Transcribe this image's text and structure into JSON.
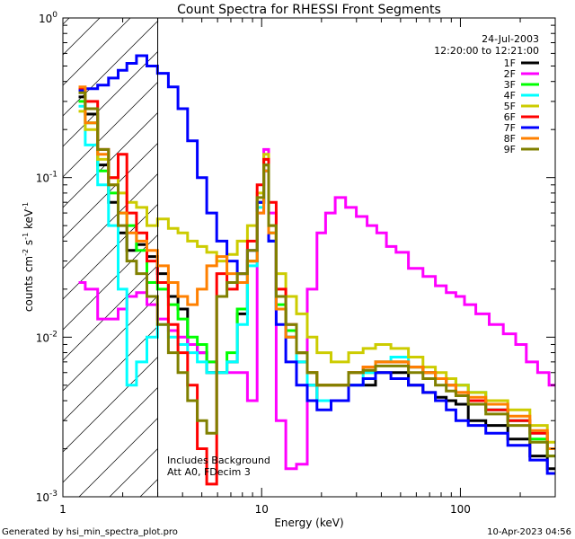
{
  "chart_data": {
    "type": "line",
    "title": "Count Spectra for RHESSI Front Segments",
    "xlabel": "Energy (keV)",
    "ylabel_parts": {
      "a": "counts cm",
      "b": "-2",
      "c": " s",
      "d": "-1",
      "e": " keV",
      "f": "-1"
    },
    "x_scale": "log",
    "y_scale": "log",
    "xlim": [
      1,
      300
    ],
    "ylim": [
      0.001,
      1
    ],
    "x_ticks": [
      {
        "value": 1,
        "label": "1"
      },
      {
        "value": 10,
        "label": "10"
      },
      {
        "value": 100,
        "label": "100"
      }
    ],
    "y_ticks": [
      {
        "value": 0.001,
        "base": "10",
        "exp": "-3"
      },
      {
        "value": 0.01,
        "base": "10",
        "exp": "-2"
      },
      {
        "value": 0.1,
        "base": "10",
        "exp": "-1"
      },
      {
        "value": 1,
        "base": "10",
        "exp": "0"
      }
    ],
    "legend_position": "top-right",
    "date": "24-Jul-2003",
    "time_range": "12:20:00 to 12:21:00",
    "annotation_line1": "Includes Background",
    "annotation_line2": "Att A0, FDecim 3",
    "hatched_region_max_kev": 3,
    "series": [
      {
        "name": "1F",
        "color": "#000000",
        "x": [
          1.2,
          1.4,
          1.6,
          1.8,
          2.0,
          2.2,
          2.5,
          2.8,
          3.2,
          3.6,
          4.0,
          4.5,
          5.0,
          5.6,
          6.3,
          7.1,
          8.0,
          9.0,
          10.0,
          10.5,
          11.2,
          12.5,
          14.0,
          16.0,
          18.0,
          20.0,
          25.0,
          30.0,
          35.0,
          40.0,
          50.0,
          60.0,
          70.0,
          80.0,
          90.0,
          100.0,
          120.0,
          150.0,
          200.0,
          250.0,
          300.0
        ],
        "y": [
          0.32,
          0.25,
          0.12,
          0.07,
          0.045,
          0.035,
          0.038,
          0.032,
          0.025,
          0.018,
          0.015,
          0.009,
          0.008,
          0.006,
          0.006,
          0.007,
          0.014,
          0.03,
          0.07,
          0.12,
          0.04,
          0.015,
          0.01,
          0.007,
          0.005,
          0.004,
          0.004,
          0.005,
          0.005,
          0.006,
          0.006,
          0.005,
          0.0045,
          0.0042,
          0.004,
          0.0038,
          0.003,
          0.0028,
          0.0023,
          0.0018,
          0.0015
        ]
      },
      {
        "name": "2F",
        "color": "#ff00ff",
        "x": [
          1.2,
          1.4,
          1.6,
          1.8,
          2.0,
          2.2,
          2.5,
          2.8,
          3.2,
          3.6,
          4.0,
          4.5,
          5.0,
          5.6,
          6.3,
          7.1,
          8.0,
          9.0,
          10.0,
          10.5,
          11.2,
          12.5,
          14.0,
          16.0,
          18.0,
          20.0,
          22.0,
          25.0,
          28.0,
          32.0,
          36.0,
          40.0,
          45.0,
          50.0,
          60.0,
          70.0,
          80.0,
          90.0,
          100.0,
          110.0,
          130.0,
          150.0,
          180.0,
          200.0,
          230.0,
          260.0,
          300.0
        ],
        "y": [
          0.022,
          0.02,
          0.013,
          0.013,
          0.015,
          0.018,
          0.019,
          0.016,
          0.013,
          0.011,
          0.01,
          0.009,
          0.008,
          0.007,
          0.006,
          0.006,
          0.006,
          0.004,
          0.06,
          0.15,
          0.06,
          0.003,
          0.0015,
          0.0016,
          0.02,
          0.045,
          0.06,
          0.075,
          0.065,
          0.057,
          0.05,
          0.045,
          0.037,
          0.034,
          0.027,
          0.024,
          0.021,
          0.019,
          0.018,
          0.016,
          0.014,
          0.012,
          0.0105,
          0.009,
          0.007,
          0.006,
          0.005
        ]
      },
      {
        "name": "3F",
        "color": "#00ff00",
        "x": [
          1.2,
          1.4,
          1.6,
          1.8,
          2.0,
          2.2,
          2.5,
          2.8,
          3.2,
          3.6,
          4.0,
          4.5,
          5.0,
          5.6,
          6.3,
          7.1,
          8.0,
          9.0,
          10.0,
          10.5,
          11.2,
          12.5,
          14.0,
          16.0,
          18.0,
          20.0,
          25.0,
          30.0,
          35.0,
          40.0,
          50.0,
          60.0,
          70.0,
          80.0,
          90.0,
          100.0,
          120.0,
          150.0,
          200.0,
          250.0,
          300.0
        ],
        "y": [
          0.3,
          0.22,
          0.11,
          0.08,
          0.06,
          0.05,
          0.035,
          0.022,
          0.02,
          0.016,
          0.013,
          0.01,
          0.009,
          0.007,
          0.006,
          0.008,
          0.015,
          0.03,
          0.07,
          0.13,
          0.045,
          0.016,
          0.011,
          0.008,
          0.006,
          0.005,
          0.005,
          0.006,
          0.006,
          0.007,
          0.007,
          0.0065,
          0.006,
          0.0055,
          0.0055,
          0.005,
          0.0045,
          0.0035,
          0.003,
          0.0023,
          0.0018
        ]
      },
      {
        "name": "4F",
        "color": "#00ffff",
        "x": [
          1.2,
          1.4,
          1.6,
          1.8,
          2.0,
          2.2,
          2.5,
          2.8,
          3.2,
          3.6,
          4.0,
          4.5,
          5.0,
          5.6,
          6.3,
          7.1,
          8.0,
          9.0,
          10.0,
          10.5,
          11.2,
          12.5,
          14.0,
          16.0,
          18.0,
          20.0,
          25.0,
          30.0,
          35.0,
          40.0,
          50.0,
          60.0,
          70.0,
          80.0,
          90.0,
          100.0,
          120.0,
          150.0,
          200.0,
          250.0,
          300.0
        ],
        "y": [
          0.28,
          0.16,
          0.09,
          0.05,
          0.02,
          0.005,
          0.007,
          0.01,
          0.012,
          0.01,
          0.009,
          0.008,
          0.007,
          0.006,
          0.006,
          0.007,
          0.012,
          0.028,
          0.065,
          0.11,
          0.04,
          0.015,
          0.01,
          0.007,
          0.005,
          0.004,
          0.004,
          0.005,
          0.006,
          0.007,
          0.0075,
          0.0065,
          0.006,
          0.0055,
          0.005,
          0.005,
          0.0045,
          0.0035,
          0.003,
          0.0025,
          0.002
        ]
      },
      {
        "name": "5F",
        "color": "#cccc00",
        "x": [
          1.2,
          1.4,
          1.6,
          1.8,
          2.0,
          2.2,
          2.5,
          2.8,
          3.2,
          3.6,
          4.0,
          4.5,
          5.0,
          5.6,
          6.3,
          7.1,
          8.0,
          9.0,
          10.0,
          10.5,
          11.2,
          12.5,
          14.0,
          16.0,
          18.0,
          20.0,
          25.0,
          30.0,
          35.0,
          40.0,
          50.0,
          60.0,
          70.0,
          80.0,
          90.0,
          100.0,
          120.0,
          150.0,
          200.0,
          250.0,
          300.0
        ],
        "y": [
          0.26,
          0.2,
          0.13,
          0.1,
          0.08,
          0.07,
          0.065,
          0.05,
          0.055,
          0.048,
          0.045,
          0.04,
          0.037,
          0.034,
          0.03,
          0.033,
          0.04,
          0.05,
          0.08,
          0.14,
          0.05,
          0.025,
          0.018,
          0.014,
          0.01,
          0.008,
          0.007,
          0.008,
          0.0085,
          0.009,
          0.0085,
          0.0075,
          0.0065,
          0.006,
          0.0055,
          0.005,
          0.0045,
          0.004,
          0.0035,
          0.0028,
          0.0022
        ]
      },
      {
        "name": "6F",
        "color": "#ff0000",
        "x": [
          1.2,
          1.4,
          1.6,
          1.8,
          2.0,
          2.2,
          2.5,
          2.8,
          3.2,
          3.6,
          4.0,
          4.5,
          5.0,
          5.6,
          6.3,
          7.1,
          8.0,
          9.0,
          10.0,
          10.5,
          11.2,
          12.5,
          14.0,
          16.0,
          18.0,
          20.0,
          25.0,
          30.0,
          35.0,
          40.0,
          50.0,
          60.0,
          70.0,
          80.0,
          90.0,
          100.0,
          120.0,
          150.0,
          200.0,
          250.0,
          300.0
        ],
        "y": [
          0.36,
          0.3,
          0.15,
          0.1,
          0.14,
          0.06,
          0.045,
          0.03,
          0.022,
          0.012,
          0.008,
          0.005,
          0.002,
          0.0012,
          0.025,
          0.02,
          0.025,
          0.04,
          0.09,
          0.13,
          0.07,
          0.02,
          0.012,
          0.008,
          0.006,
          0.005,
          0.005,
          0.006,
          0.0065,
          0.007,
          0.007,
          0.0065,
          0.006,
          0.0055,
          0.005,
          0.0045,
          0.004,
          0.0035,
          0.003,
          0.0025,
          0.002
        ]
      },
      {
        "name": "7F",
        "color": "#0000ff",
        "x": [
          1.2,
          1.4,
          1.6,
          1.8,
          2.0,
          2.2,
          2.5,
          2.8,
          3.2,
          3.6,
          4.0,
          4.5,
          5.0,
          5.6,
          6.3,
          7.1,
          8.0,
          9.0,
          10.0,
          10.5,
          11.2,
          12.5,
          14.0,
          16.0,
          18.0,
          20.0,
          25.0,
          30.0,
          35.0,
          40.0,
          50.0,
          60.0,
          70.0,
          80.0,
          90.0,
          100.0,
          120.0,
          150.0,
          200.0,
          250.0,
          300.0
        ],
        "y": [
          0.35,
          0.36,
          0.38,
          0.42,
          0.47,
          0.52,
          0.58,
          0.5,
          0.45,
          0.37,
          0.27,
          0.17,
          0.1,
          0.06,
          0.04,
          0.03,
          0.025,
          0.035,
          0.07,
          0.11,
          0.04,
          0.012,
          0.007,
          0.005,
          0.004,
          0.0035,
          0.004,
          0.005,
          0.0055,
          0.006,
          0.0055,
          0.005,
          0.0045,
          0.004,
          0.0035,
          0.003,
          0.0028,
          0.0025,
          0.0021,
          0.0017,
          0.0014
        ]
      },
      {
        "name": "8F",
        "color": "#ff8000",
        "x": [
          1.2,
          1.4,
          1.6,
          1.8,
          2.0,
          2.2,
          2.5,
          2.8,
          3.2,
          3.6,
          4.0,
          4.5,
          5.0,
          5.6,
          6.3,
          7.1,
          8.0,
          9.0,
          10.0,
          10.5,
          11.2,
          12.5,
          14.0,
          16.0,
          18.0,
          20.0,
          25.0,
          30.0,
          35.0,
          40.0,
          50.0,
          60.0,
          70.0,
          80.0,
          90.0,
          100.0,
          120.0,
          150.0,
          200.0,
          250.0,
          300.0
        ],
        "y": [
          0.37,
          0.22,
          0.14,
          0.09,
          0.06,
          0.045,
          0.04,
          0.035,
          0.028,
          0.022,
          0.018,
          0.016,
          0.02,
          0.028,
          0.032,
          0.025,
          0.022,
          0.03,
          0.06,
          0.11,
          0.045,
          0.015,
          0.01,
          0.008,
          0.006,
          0.005,
          0.005,
          0.006,
          0.0065,
          0.007,
          0.007,
          0.0065,
          0.006,
          0.0055,
          0.005,
          0.0045,
          0.0042,
          0.0038,
          0.0032,
          0.0026,
          0.002
        ]
      },
      {
        "name": "9F",
        "color": "#808000",
        "x": [
          1.2,
          1.4,
          1.6,
          1.8,
          2.0,
          2.2,
          2.5,
          2.8,
          3.2,
          3.6,
          4.0,
          4.5,
          5.0,
          5.6,
          6.3,
          7.1,
          8.0,
          9.0,
          10.0,
          10.5,
          11.2,
          12.5,
          14.0,
          16.0,
          18.0,
          20.0,
          25.0,
          30.0,
          35.0,
          40.0,
          50.0,
          60.0,
          70.0,
          80.0,
          90.0,
          100.0,
          120.0,
          150.0,
          200.0,
          250.0,
          300.0
        ],
        "y": [
          0.34,
          0.27,
          0.15,
          0.09,
          0.05,
          0.03,
          0.025,
          0.018,
          0.012,
          0.008,
          0.006,
          0.004,
          0.003,
          0.0025,
          0.018,
          0.022,
          0.025,
          0.035,
          0.075,
          0.12,
          0.05,
          0.018,
          0.012,
          0.008,
          0.006,
          0.005,
          0.005,
          0.006,
          0.0062,
          0.0066,
          0.0066,
          0.006,
          0.0055,
          0.005,
          0.0046,
          0.0043,
          0.0038,
          0.0033,
          0.0028,
          0.0022,
          0.0018
        ]
      }
    ]
  },
  "footer": {
    "generated_by": "Generated by hsi_min_spectra_plot.pro",
    "timestamp": "10-Apr-2023 04:56"
  }
}
